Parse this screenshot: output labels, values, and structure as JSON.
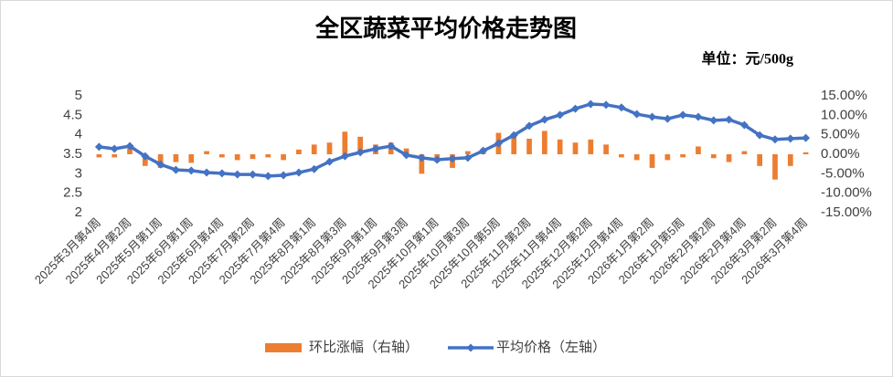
{
  "chart_data": {
    "type": "bar-line",
    "title": "全区蔬菜平均价格走势图",
    "unit_note": "单位：元/500g",
    "categories": [
      "2025年3月第4周",
      null,
      "2025年4月第2周",
      null,
      "2025年5月第1周",
      null,
      "2025年6月第1周",
      null,
      "2025年6月第4周",
      null,
      "2025年7月第2周",
      null,
      "2025年7月第4周",
      null,
      "2025年8月第1周",
      null,
      "2025年8月第3周",
      null,
      "2025年9月第1周",
      null,
      "2025年9月第3周",
      null,
      "2025年10月第1周",
      null,
      "2025年10月第3周",
      null,
      "2025年10月第5周",
      null,
      "2025年11月第2周",
      null,
      "2025年11月第4周",
      null,
      "2025年12月第2周",
      null,
      "2025年12月第4周",
      null,
      "2026年1月第2周",
      null,
      "2026年1月第5周",
      null,
      "2026年2月第2周",
      null,
      "2026年2月第4周",
      null,
      "2026年3月第2周",
      null,
      "2026年3月第4周"
    ],
    "series": [
      {
        "name": "环比涨幅（右轴）",
        "type": "bar",
        "axis": "y2",
        "color": "#ed7d31",
        "values": [
          -0.8,
          -0.8,
          1.5,
          -3.0,
          -3.5,
          -2.0,
          -2.2,
          0.8,
          -0.8,
          -1.5,
          -1.2,
          -0.8,
          -1.5,
          1.2,
          2.5,
          3.0,
          5.8,
          4.5,
          2.5,
          3.0,
          1.5,
          -5.0,
          -2.0,
          -3.5,
          0.8,
          1.5,
          5.5,
          5.0,
          4.0,
          6.0,
          3.8,
          3.0,
          3.8,
          2.5,
          -0.8,
          -1.5,
          -3.5,
          -1.5,
          -0.8,
          2.0,
          -1.0,
          -2.0,
          0.8,
          -3.0,
          -6.5,
          -3.0,
          0.5
        ]
      },
      {
        "name": "平均价格（左轴）",
        "type": "line",
        "color": "#4472c4",
        "values": [
          3.69,
          3.64,
          3.71,
          3.45,
          3.24,
          3.1,
          3.08,
          3.03,
          3.01,
          2.98,
          2.98,
          2.94,
          2.96,
          3.03,
          3.12,
          3.31,
          3.45,
          3.55,
          3.64,
          3.71,
          3.48,
          3.41,
          3.36,
          3.39,
          3.41,
          3.59,
          3.78,
          3.99,
          4.23,
          4.39,
          4.51,
          4.67,
          4.79,
          4.77,
          4.7,
          4.53,
          4.46,
          4.41,
          4.51,
          4.46,
          4.37,
          4.39,
          4.25,
          3.99,
          3.88,
          3.9,
          3.92
        ]
      }
    ],
    "ylim": [
      2,
      5
    ],
    "yticks": [
      2,
      2.5,
      3,
      3.5,
      4,
      4.5,
      5
    ],
    "y2lim": [
      -15,
      15
    ],
    "y2ticks": [
      {
        "value": -15,
        "label": "-15.00%"
      },
      {
        "value": -10,
        "label": "-10.00%"
      },
      {
        "value": -5,
        "label": "-5.00%"
      },
      {
        "value": 0,
        "label": "0.00%"
      },
      {
        "value": 5,
        "label": "5.00%"
      },
      {
        "value": 10,
        "label": "10.00%"
      },
      {
        "value": 15,
        "label": "15.00%"
      }
    ],
    "grid": false,
    "legend": "bottom"
  }
}
